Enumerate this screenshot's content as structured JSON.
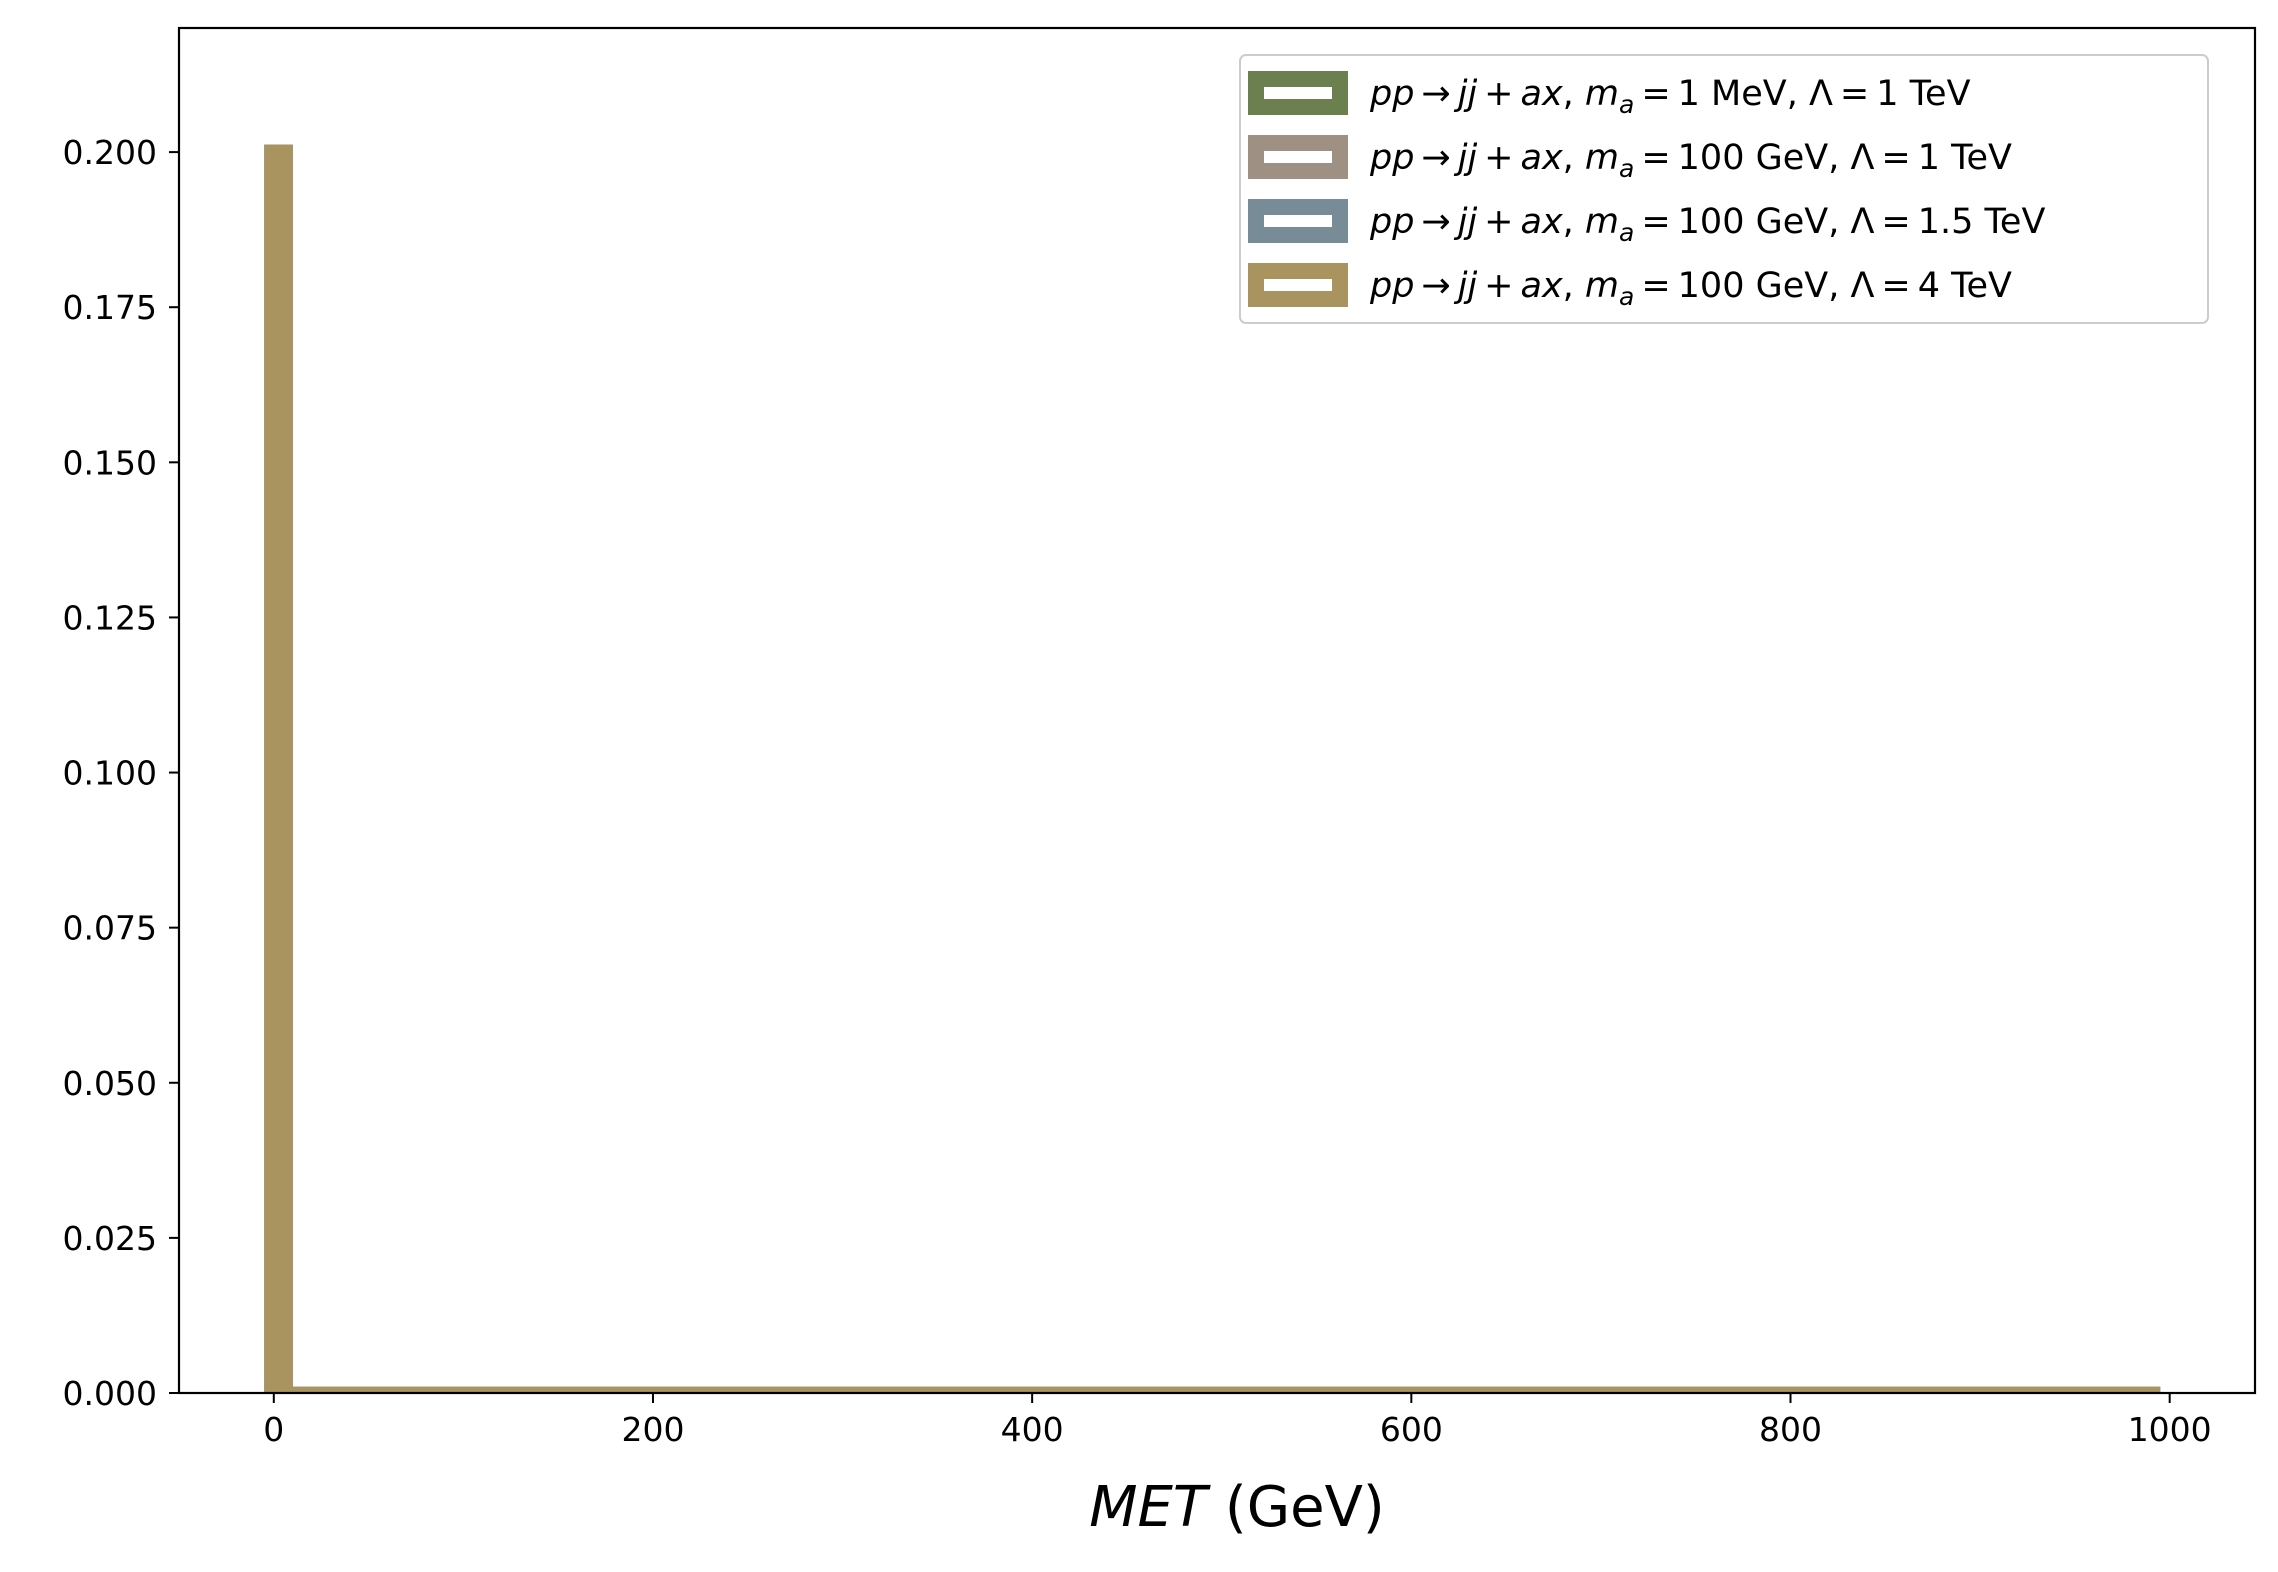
{
  "chart_data": {
    "type": "histogram",
    "title": "",
    "xlabel_var": "MET",
    "xlabel_unit": " (GeV)",
    "ylabel": "",
    "xlim": [
      -50,
      1045
    ],
    "ylim": [
      0,
      0.22
    ],
    "xticks": [
      0,
      200,
      400,
      600,
      800,
      1000
    ],
    "xtick_labels": [
      "0",
      "200",
      "400",
      "600",
      "800",
      "1000"
    ],
    "yticks": [
      0,
      0.025,
      0.05,
      0.075,
      0.1,
      0.125,
      0.15,
      0.175,
      0.2
    ],
    "ytick_labels": [
      "0.000",
      "0.025",
      "0.050",
      "0.075",
      "0.100",
      "0.125",
      "0.150",
      "0.175",
      "0.200"
    ],
    "grid": false,
    "legend_position": "top-right",
    "series": [
      {
        "label_head": "pp → jj + ax",
        "label_tail": ", Λ = 1 TeV",
        "mass_value": "1 MeV",
        "color": "#6b7f4f",
        "bins": [
          {
            "x0": -5,
            "x1": 10,
            "y": 0.2012
          },
          {
            "x0": 10,
            "x1": 995,
            "y": 0.001
          }
        ]
      },
      {
        "label_head": "pp → jj + ax",
        "label_tail": ", Λ = 1 TeV",
        "mass_value": "100 GeV",
        "color": "#9e9183",
        "bins": [
          {
            "x0": -5,
            "x1": 10,
            "y": 0.2012
          },
          {
            "x0": 10,
            "x1": 995,
            "y": 0.001
          }
        ]
      },
      {
        "label_head": "pp → jj + ax",
        "label_tail": ", Λ = 1.5 TeV",
        "mass_value": "100 GeV",
        "color": "#778c96",
        "bins": [
          {
            "x0": -5,
            "x1": 10,
            "y": 0.2012
          },
          {
            "x0": 10,
            "x1": 995,
            "y": 0.001
          }
        ]
      },
      {
        "label_head": "pp → jj + ax",
        "label_tail": ", Λ = 4 TeV",
        "mass_value": "100 GeV",
        "color": "#a99460",
        "bins": [
          {
            "x0": -5,
            "x1": 10,
            "y": 0.2012
          },
          {
            "x0": 10,
            "x1": 995,
            "y": 0.001
          }
        ]
      }
    ]
  }
}
